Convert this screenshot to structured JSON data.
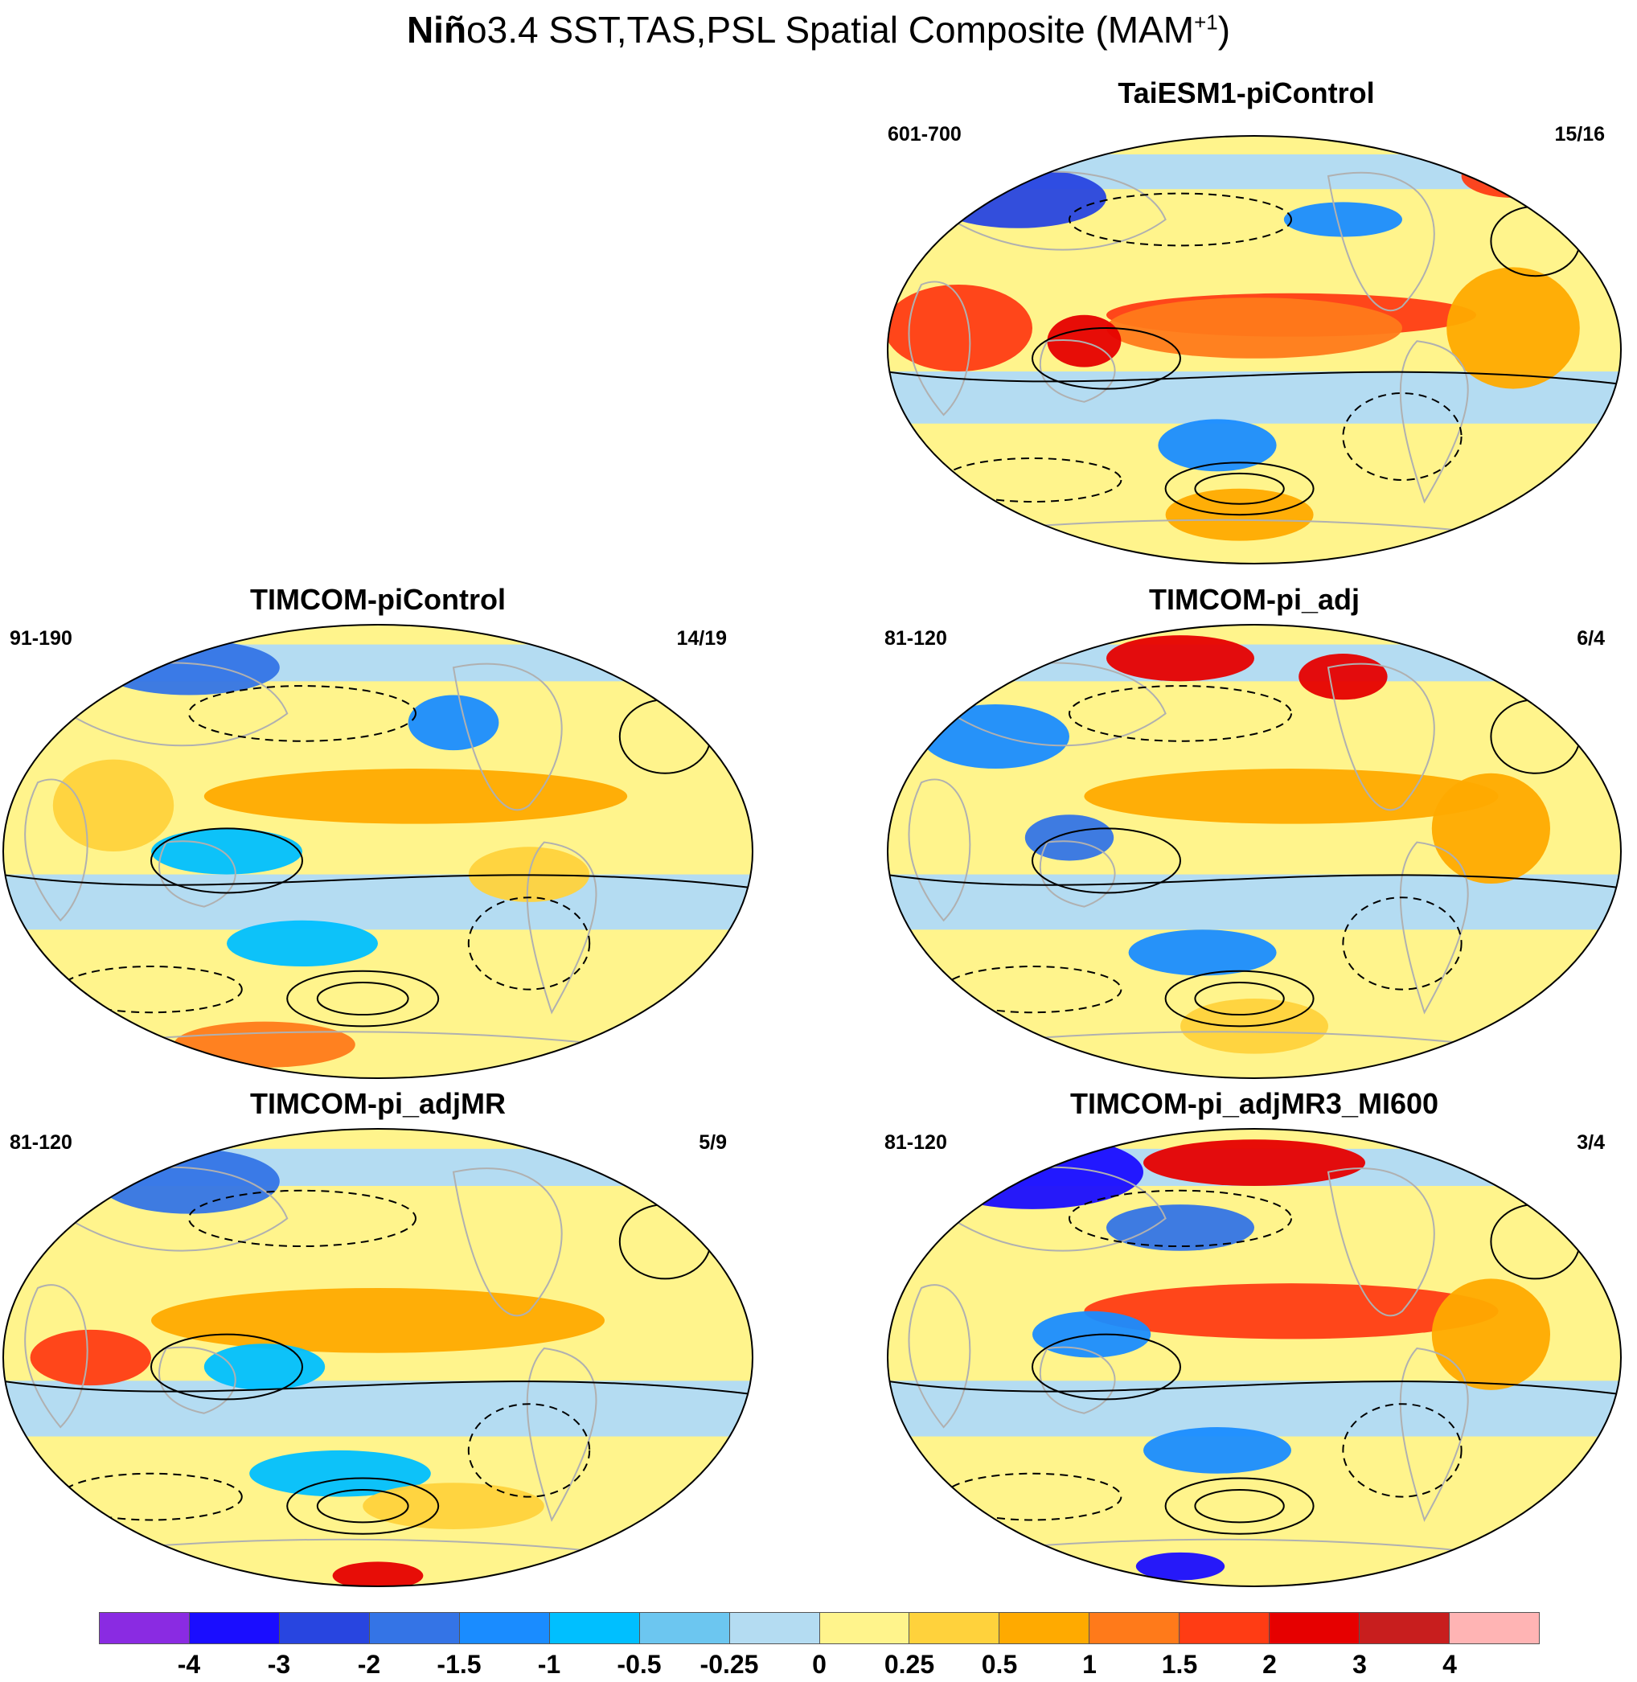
{
  "figure": {
    "title_bold": "Niñ",
    "title_rest": "o3.4 SST,TAS,PSL Spatial Composite (MAM",
    "title_sup": "+1",
    "title_close": ")"
  },
  "panels": [
    {
      "title": "TaiESM1-piControl",
      "years": "601-700",
      "count": "15/16"
    },
    {
      "title": "TIMCOM-piControl",
      "years": "91-190",
      "count": "14/19"
    },
    {
      "title": "TIMCOM-pi_adj",
      "years": "81-120",
      "count": "6/4"
    },
    {
      "title": "TIMCOM-pi_adjMR",
      "years": "81-120",
      "count": "5/9"
    },
    {
      "title": "TIMCOM-pi_adjMR3_MI600",
      "years": "81-120",
      "count": "3/4"
    }
  ],
  "colorbar": {
    "colors": [
      "#8a2be2",
      "#1a0dff",
      "#2845e0",
      "#3474e6",
      "#1a8cff",
      "#00bfff",
      "#6cc6f0",
      "#b4dcf2",
      "#fff48c",
      "#ffd23c",
      "#ffaa00",
      "#ff7a1a",
      "#ff3c14",
      "#e60000",
      "#c81e1e",
      "#ffb4b4"
    ],
    "tick_labels": [
      "-4",
      "-3",
      "-2",
      "-1.5",
      "-1",
      "-0.5",
      "-0.25",
      "0",
      "0.25",
      "0.5",
      "1",
      "1.5",
      "2",
      "3",
      "4"
    ]
  }
}
